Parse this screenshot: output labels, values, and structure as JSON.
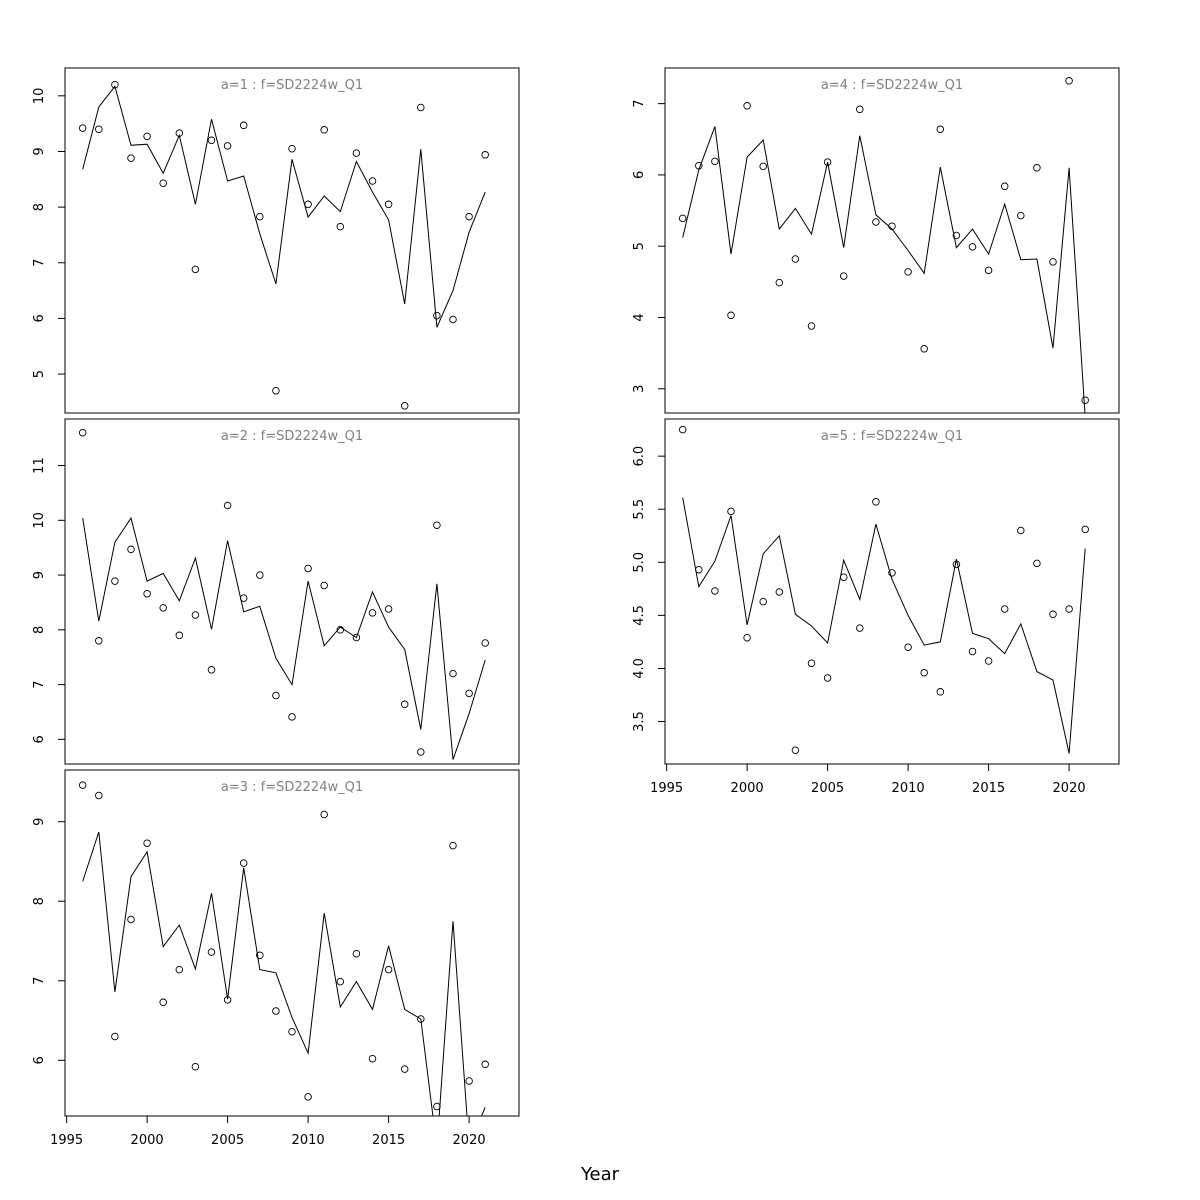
{
  "colors": {
    "line": "#000000",
    "points": "#000000",
    "title": "#808080",
    "frame": "#000000"
  },
  "figure": {
    "xlabel": "Year"
  },
  "chart_data": [
    {
      "type": "line",
      "title": "a=1 : f=SD2224w_Q1",
      "xlabel": "",
      "ylabel": "",
      "xlim": [
        1994.9,
        2023.1
      ],
      "ylim": [
        4.3,
        10.5
      ],
      "xticks": [
        1995,
        2000,
        2005,
        2010,
        2015,
        2020
      ],
      "xtick_labels_shown": false,
      "yticks": [
        5,
        6,
        7,
        8,
        9,
        10
      ],
      "x": [
        1996,
        1997,
        1998,
        1999,
        2000,
        2001,
        2002,
        2003,
        2004,
        2005,
        2006,
        2007,
        2008,
        2009,
        2010,
        2011,
        2012,
        2013,
        2014,
        2015,
        2016,
        2017,
        2018,
        2019,
        2020,
        2021
      ],
      "series": [
        {
          "kind": "points",
          "values": [
            9.42,
            9.4,
            10.2,
            8.88,
            9.27,
            8.43,
            9.33,
            6.88,
            9.2,
            9.1,
            9.47,
            7.83,
            4.7,
            9.05,
            8.05,
            9.39,
            7.65,
            8.97,
            8.47,
            8.05,
            4.43,
            9.79,
            6.05,
            5.98,
            7.83,
            8.94
          ]
        },
        {
          "kind": "line",
          "values": [
            8.68,
            9.8,
            10.17,
            9.11,
            9.13,
            8.61,
            9.29,
            8.05,
            9.58,
            8.47,
            8.56,
            7.52,
            6.62,
            8.86,
            7.82,
            8.2,
            7.92,
            8.82,
            8.27,
            7.77,
            6.26,
            9.04,
            5.84,
            6.5,
            7.55,
            8.27
          ]
        }
      ]
    },
    {
      "type": "line",
      "title": "a=2 : f=SD2224w_Q1",
      "xlabel": "",
      "ylabel": "",
      "xlim": [
        1994.9,
        2023.1
      ],
      "ylim": [
        5.55,
        11.85
      ],
      "xticks": [
        1995,
        2000,
        2005,
        2010,
        2015,
        2020
      ],
      "xtick_labels_shown": false,
      "yticks": [
        6,
        7,
        8,
        9,
        10,
        11
      ],
      "x": [
        1996,
        1997,
        1998,
        1999,
        2000,
        2001,
        2002,
        2003,
        2004,
        2005,
        2006,
        2007,
        2008,
        2009,
        2010,
        2011,
        2012,
        2013,
        2014,
        2015,
        2016,
        2017,
        2018,
        2019,
        2020,
        2021
      ],
      "series": [
        {
          "kind": "points",
          "values": [
            11.6,
            7.8,
            8.89,
            9.47,
            8.66,
            8.4,
            7.9,
            8.27,
            7.27,
            10.27,
            8.58,
            9.0,
            6.8,
            6.41,
            9.12,
            8.81,
            8.0,
            7.86,
            8.31,
            8.38,
            6.64,
            5.77,
            9.91,
            7.2,
            6.84,
            7.76
          ]
        },
        {
          "kind": "line",
          "values": [
            10.04,
            8.16,
            9.6,
            10.04,
            8.89,
            9.03,
            8.53,
            9.31,
            8.01,
            9.63,
            8.33,
            8.43,
            7.48,
            7.0,
            8.89,
            7.71,
            8.05,
            7.86,
            8.69,
            8.05,
            7.64,
            6.18,
            8.84,
            5.63,
            6.47,
            7.45
          ]
        }
      ]
    },
    {
      "type": "line",
      "title": "a=3 : f=SD2224w_Q1",
      "xlabel": "Year",
      "ylabel": "",
      "xlim": [
        1994.9,
        2023.1
      ],
      "ylim": [
        5.3,
        9.65
      ],
      "xticks": [
        1995,
        2000,
        2005,
        2010,
        2015,
        2020
      ],
      "xtick_labels_shown": true,
      "yticks": [
        6,
        7,
        8,
        9
      ],
      "x": [
        1996,
        1997,
        1998,
        1999,
        2000,
        2001,
        2002,
        2003,
        2004,
        2005,
        2006,
        2007,
        2008,
        2009,
        2010,
        2011,
        2012,
        2013,
        2014,
        2015,
        2016,
        2017,
        2018,
        2019,
        2020,
        2021
      ],
      "series": [
        {
          "kind": "points",
          "values": [
            9.46,
            9.33,
            6.3,
            7.77,
            8.73,
            6.73,
            7.14,
            5.92,
            7.36,
            6.76,
            8.48,
            7.32,
            6.62,
            6.36,
            5.54,
            9.09,
            6.99,
            7.34,
            6.02,
            7.14,
            5.89,
            6.52,
            5.42,
            8.7,
            5.74,
            5.95
          ]
        },
        {
          "kind": "line",
          "values": [
            8.25,
            8.87,
            6.86,
            8.31,
            8.62,
            7.43,
            7.7,
            7.15,
            8.1,
            6.77,
            8.42,
            7.14,
            7.1,
            6.54,
            6.09,
            7.85,
            6.67,
            6.99,
            6.64,
            7.44,
            6.64,
            6.52,
            4.9,
            7.75,
            4.93,
            5.41
          ]
        }
      ]
    },
    {
      "type": "line",
      "title": "a=4 : f=SD2224w_Q1",
      "xlabel": "",
      "ylabel": "",
      "xlim": [
        1994.9,
        2023.1
      ],
      "ylim": [
        2.66,
        7.5
      ],
      "xticks": [
        1995,
        2000,
        2005,
        2010,
        2015,
        2020
      ],
      "xtick_labels_shown": false,
      "yticks": [
        3,
        4,
        5,
        6,
        7
      ],
      "x": [
        1996,
        1997,
        1998,
        1999,
        2000,
        2001,
        2002,
        2003,
        2004,
        2005,
        2006,
        2007,
        2008,
        2009,
        2010,
        2011,
        2012,
        2013,
        2014,
        2015,
        2016,
        2017,
        2018,
        2019,
        2020,
        2021
      ],
      "series": [
        {
          "kind": "points",
          "values": [
            5.39,
            6.13,
            6.19,
            4.03,
            6.97,
            6.12,
            4.49,
            4.82,
            3.88,
            6.18,
            4.58,
            6.92,
            5.34,
            5.28,
            4.64,
            3.56,
            6.64,
            5.15,
            4.99,
            4.66,
            5.84,
            5.43,
            6.1,
            4.78,
            7.32,
            2.84
          ]
        },
        {
          "kind": "line",
          "values": [
            5.12,
            6.07,
            6.68,
            4.89,
            6.25,
            6.49,
            5.24,
            5.53,
            5.17,
            6.18,
            4.98,
            6.55,
            5.44,
            5.24,
            4.94,
            4.62,
            6.11,
            4.98,
            5.24,
            4.89,
            5.59,
            4.81,
            4.82,
            3.57,
            6.1,
            2.6
          ]
        }
      ]
    },
    {
      "type": "line",
      "title": "a=5 : f=SD2224w_Q1",
      "xlabel": "Year",
      "ylabel": "",
      "xlim": [
        1994.9,
        2023.1
      ],
      "ylim": [
        3.1,
        6.35
      ],
      "xticks": [
        1995,
        2000,
        2005,
        2010,
        2015,
        2020
      ],
      "xtick_labels_shown": true,
      "yticks": [
        3.5,
        4.0,
        4.5,
        5.0,
        5.5,
        6.0
      ],
      "ytick_labels": [
        "3.5",
        "4.0",
        "4.5",
        "5.0",
        "5.5",
        "6.0"
      ],
      "x": [
        1996,
        1997,
        1998,
        1999,
        2000,
        2001,
        2002,
        2003,
        2004,
        2005,
        2006,
        2007,
        2008,
        2009,
        2010,
        2011,
        2012,
        2013,
        2014,
        2015,
        2016,
        2017,
        2018,
        2019,
        2020,
        2021
      ],
      "series": [
        {
          "kind": "points",
          "values": [
            6.25,
            4.93,
            4.73,
            5.48,
            4.29,
            4.63,
            4.72,
            3.23,
            4.05,
            3.91,
            4.86,
            4.38,
            5.57,
            4.9,
            4.2,
            3.96,
            3.78,
            4.98,
            4.16,
            4.07,
            4.56,
            5.3,
            4.99,
            4.51,
            4.56,
            5.31
          ]
        },
        {
          "kind": "line",
          "values": [
            5.61,
            4.77,
            5.01,
            5.44,
            4.41,
            5.08,
            5.25,
            4.51,
            4.4,
            4.24,
            5.02,
            4.65,
            5.36,
            4.84,
            4.5,
            4.22,
            4.25,
            5.03,
            4.33,
            4.28,
            4.14,
            4.42,
            3.97,
            3.89,
            3.2,
            5.13
          ]
        }
      ]
    }
  ]
}
